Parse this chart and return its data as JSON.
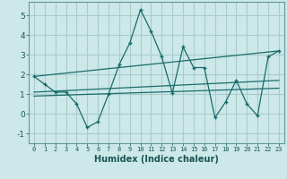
{
  "title": "",
  "xlabel": "Humidex (Indice chaleur)",
  "background_color": "#cce8e8",
  "grid_color": "#aacccc",
  "line_color": "#1a6b6b",
  "x_min": -0.5,
  "x_max": 23.5,
  "y_min": -1.5,
  "y_max": 5.7,
  "y_ticks": [
    -1,
    0,
    1,
    2,
    3,
    4,
    5
  ],
  "x_ticks": [
    0,
    1,
    2,
    3,
    4,
    5,
    6,
    7,
    8,
    9,
    10,
    11,
    12,
    13,
    14,
    15,
    16,
    17,
    18,
    19,
    20,
    21,
    22,
    23
  ],
  "series1_x": [
    0,
    1,
    2,
    3,
    4,
    5,
    6,
    7,
    8,
    9,
    10,
    11,
    12,
    13,
    14,
    15,
    16,
    17,
    18,
    19,
    20,
    21,
    22,
    23
  ],
  "series1_y": [
    1.9,
    1.5,
    1.1,
    1.1,
    0.5,
    -0.7,
    -0.4,
    1.0,
    2.5,
    3.6,
    5.3,
    4.2,
    2.9,
    1.05,
    3.4,
    2.35,
    2.35,
    -0.2,
    0.6,
    1.7,
    0.5,
    -0.1,
    2.9,
    3.2
  ],
  "series2_x": [
    0,
    23
  ],
  "series2_y": [
    1.9,
    3.2
  ],
  "series3_x": [
    0,
    23
  ],
  "series3_y": [
    1.1,
    1.7
  ],
  "series4_x": [
    0,
    23
  ],
  "series4_y": [
    0.9,
    1.3
  ]
}
